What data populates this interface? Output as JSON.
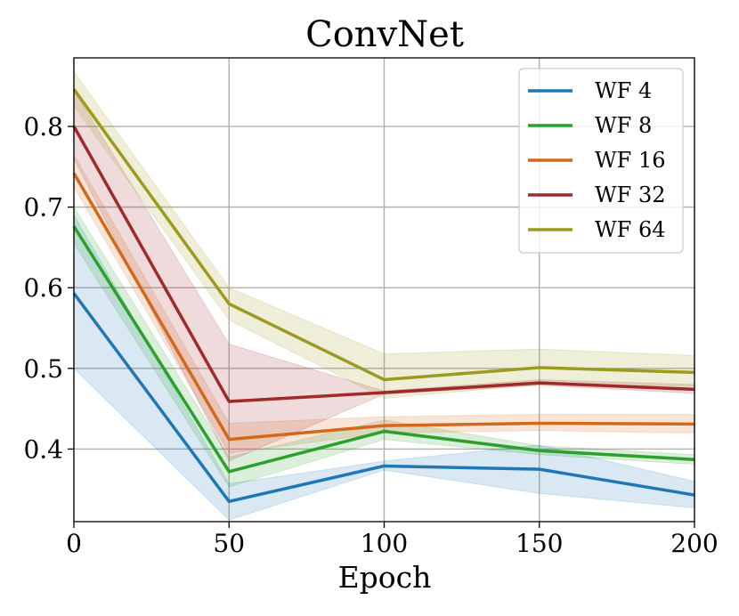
{
  "chart_data": {
    "type": "line",
    "title": "ConvNet",
    "xlabel": "Epoch",
    "ylabel": "",
    "xlim": [
      0,
      200
    ],
    "ylim": [
      0.31,
      0.885
    ],
    "xticks": [
      0,
      50,
      100,
      150,
      200
    ],
    "yticks": [
      0.4,
      0.5,
      0.6,
      0.7,
      0.8
    ],
    "xtick_labels": [
      "0",
      "50",
      "100",
      "150",
      "200"
    ],
    "ytick_labels": [
      "0.4",
      "0.5",
      "0.6",
      "0.7",
      "0.8"
    ],
    "grid": true,
    "legend_position": "top-right",
    "x": [
      0,
      50,
      100,
      150,
      200
    ],
    "series": [
      {
        "name": "WF 4",
        "color": "#1f77b4",
        "values": [
          0.593,
          0.335,
          0.379,
          0.375,
          0.343
        ],
        "lower": [
          0.5,
          0.312,
          0.374,
          0.345,
          0.327
        ],
        "upper": [
          0.69,
          0.357,
          0.385,
          0.405,
          0.36
        ]
      },
      {
        "name": "WF 8",
        "color": "#2ca02c",
        "values": [
          0.676,
          0.372,
          0.422,
          0.398,
          0.387
        ],
        "lower": [
          0.655,
          0.353,
          0.412,
          0.393,
          0.381
        ],
        "upper": [
          0.7,
          0.39,
          0.436,
          0.404,
          0.393
        ]
      },
      {
        "name": "WF 16",
        "color": "#d3671a",
        "values": [
          0.742,
          0.412,
          0.429,
          0.432,
          0.431
        ],
        "lower": [
          0.725,
          0.395,
          0.42,
          0.423,
          0.42
        ],
        "upper": [
          0.765,
          0.432,
          0.44,
          0.443,
          0.443
        ]
      },
      {
        "name": "WF 32",
        "color": "#a0292a",
        "values": [
          0.8,
          0.459,
          0.47,
          0.482,
          0.474
        ],
        "lower": [
          0.76,
          0.385,
          0.468,
          0.479,
          0.469
        ],
        "upper": [
          0.845,
          0.53,
          0.472,
          0.486,
          0.48
        ]
      },
      {
        "name": "WF 64",
        "color": "#9b9b1d",
        "values": [
          0.846,
          0.58,
          0.486,
          0.501,
          0.495
        ],
        "lower": [
          0.825,
          0.56,
          0.463,
          0.48,
          0.478
        ],
        "upper": [
          0.868,
          0.6,
          0.518,
          0.524,
          0.516
        ]
      }
    ]
  }
}
